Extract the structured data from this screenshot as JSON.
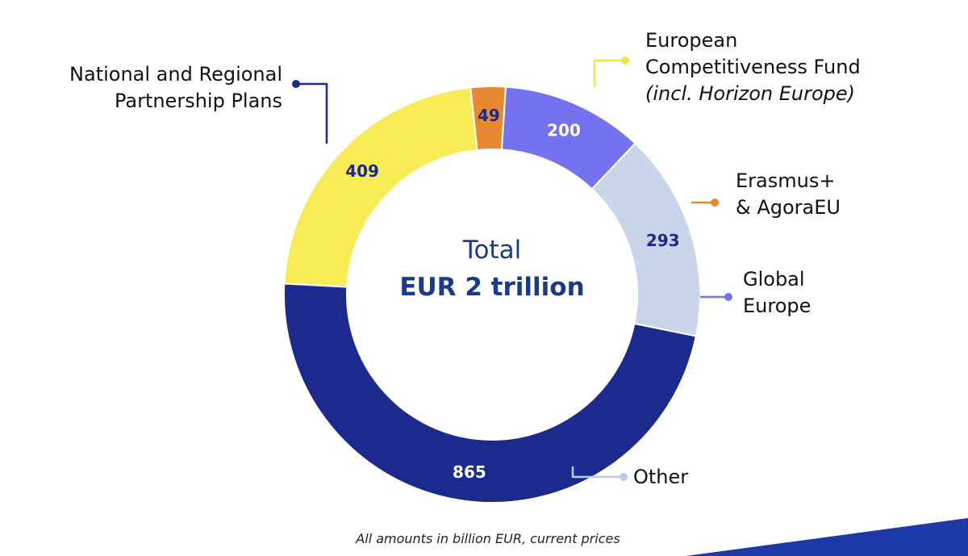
{
  "colors": {
    "national": "#1b2a8c",
    "ecf": "#f7ec55",
    "erasmus": "#e8892f",
    "global": "#7472ee",
    "other": "#c8d5ea",
    "center_text": "#1b3a8c",
    "corner_band": "#1b3aa6"
  },
  "center": {
    "title": "Total",
    "value": "EUR 2 trillion"
  },
  "footnote": "All amounts in billion EUR, current prices",
  "callouts": {
    "national": {
      "line1": "National and Regional",
      "line2": "Partnership Plans"
    },
    "ecf": {
      "line1": "European",
      "line2": "Competitiveness Fund",
      "line3": "(incl. Horizon Europe)"
    },
    "erasmus": {
      "line1": "Erasmus+",
      "line2": "& AgoraEU"
    },
    "global": {
      "line1": "Global",
      "line2": "Europe"
    },
    "other": {
      "line1": "Other"
    }
  },
  "chart_data": {
    "type": "pie",
    "title": "",
    "center_label": "Total EUR 2 trillion",
    "unit": "billion EUR, current prices",
    "series": [
      {
        "name": "European Competitiveness Fund (incl. Horizon Europe)",
        "value": 409,
        "label": "409",
        "color": "#f7ec55",
        "label_color": "#1b2a8c"
      },
      {
        "name": "Erasmus+ & AgoraEU",
        "value": 49,
        "label": "49",
        "color": "#e8892f",
        "label_color": "#1b2a8c"
      },
      {
        "name": "Global Europe",
        "value": 200,
        "label": "200",
        "color": "#7472ee",
        "label_color": "#ffffff"
      },
      {
        "name": "Other",
        "value": 293,
        "label": "293",
        "color": "#c8d5ea",
        "label_color": "#1b2a8c"
      },
      {
        "name": "National and Regional Partnership Plans",
        "value": 865,
        "label": "865",
        "color": "#1b2a8c",
        "label_color": "#ffffff"
      }
    ]
  }
}
